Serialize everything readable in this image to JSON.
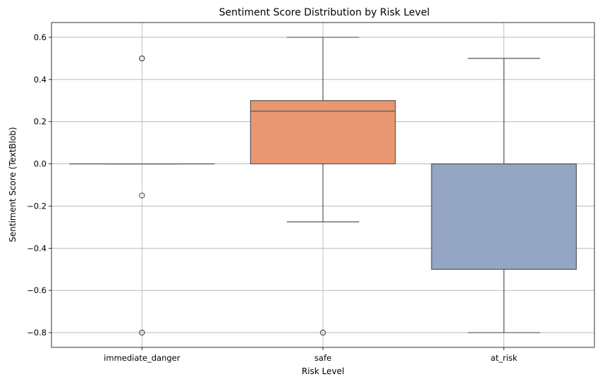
{
  "chart_data": {
    "type": "box",
    "title": "Sentiment Score Distribution by Risk Level",
    "xlabel": "Risk Level",
    "ylabel": "Sentiment Score (TextBlob)",
    "ylim": [
      -0.87,
      0.67
    ],
    "yticks": [
      -0.8,
      -0.6,
      -0.4,
      -0.2,
      0.0,
      0.2,
      0.4,
      0.6
    ],
    "ytick_labels": [
      "−0.8",
      "−0.6",
      "−0.4",
      "−0.2",
      "0.0",
      "0.2",
      "0.4",
      "0.6"
    ],
    "grid": true,
    "categories": [
      "immediate_danger",
      "safe",
      "at_risk"
    ],
    "boxes": [
      {
        "category": "immediate_danger",
        "color": "#66c2a5",
        "q1": 0.0,
        "median": 0.0,
        "q3": 0.0,
        "whisker_low": 0.0,
        "whisker_high": 0.0,
        "outliers": [
          0.5,
          0.5,
          -0.15,
          -0.8,
          -0.8
        ]
      },
      {
        "category": "safe",
        "color": "#e99672",
        "q1": 0.0,
        "median": 0.25,
        "q3": 0.3,
        "whisker_low": -0.275,
        "whisker_high": 0.6,
        "outliers": [
          -0.8,
          -0.8
        ]
      },
      {
        "category": "at_risk",
        "color": "#95a5c4",
        "q1": -0.5,
        "median": 0.0,
        "q3": 0.0,
        "whisker_low": -0.8,
        "whisker_high": 0.5,
        "outliers": []
      }
    ]
  }
}
